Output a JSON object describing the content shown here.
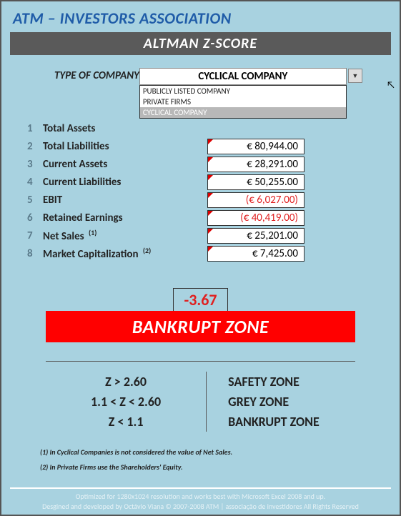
{
  "header": {
    "title": "ATM – INVESTORS ASSOCIATION",
    "subtitle": "ALTMAN Z-SCORE"
  },
  "type_selector": {
    "label": "TYPE OF COMPANY",
    "selected": "CYCLICAL COMPANY",
    "options": [
      "PUBLICLY LISTED COMPANY",
      "PRIVATE FIRMS",
      "CYCLICAL COMPANY"
    ],
    "highlighted_index": 2
  },
  "rows": [
    {
      "num": "1",
      "label": "Total Assets",
      "value": "",
      "negative": false,
      "show_value": false
    },
    {
      "num": "2",
      "label": "Total Liabilities",
      "value": "€ 80,944.00",
      "negative": false,
      "show_value": true
    },
    {
      "num": "3",
      "label": "Current Assets",
      "value": "€ 28,291.00",
      "negative": false,
      "show_value": true
    },
    {
      "num": "4",
      "label": "Current Liabilities",
      "value": "€ 50,255.00",
      "negative": false,
      "show_value": true
    },
    {
      "num": "5",
      "label": "EBIT",
      "value": "(€ 6,027.00)",
      "negative": true,
      "show_value": true
    },
    {
      "num": "6",
      "label": "Retained Earnings",
      "value": "(€ 40,419.00)",
      "negative": true,
      "show_value": true
    },
    {
      "num": "7",
      "label": "Net Sales",
      "sup": "(1)",
      "value": "€ 25,201.00",
      "negative": false,
      "show_value": true
    },
    {
      "num": "8",
      "label": "Market Capitalization",
      "sup": "(2)",
      "value": "€ 7,425.00",
      "negative": false,
      "show_value": true
    }
  ],
  "result": {
    "zscore": "-3.67",
    "zone": "BANKRUPT ZONE",
    "zone_color": "#ff0000"
  },
  "thresholds": [
    {
      "cond": "Z > 2.60",
      "zone": "SAFETY ZONE"
    },
    {
      "cond": "1.1 < Z < 2.60",
      "zone": "GREY ZONE"
    },
    {
      "cond": "Z < 1.1",
      "zone": "BANKRUPT ZONE"
    }
  ],
  "footnotes": [
    "(1)  In Cyclical Companies is not considered the value of Net Sales.",
    "(2)  In Private Firms use the Shareholders' Equity."
  ],
  "footer": {
    "line1": "Optimized for 1280x1024 resolution and works best with Microsoft Excel 2008 and up.",
    "line2": "Desgined and developed by Octávio Viana © 2007-2008 ATM | associação de investidores All Rights Reserved"
  },
  "colors": {
    "page_bg": "#a8d2e0",
    "header_text": "#1f5ca8",
    "subtitle_bg": "#5a5a5a",
    "neg_text": "#e02020"
  }
}
